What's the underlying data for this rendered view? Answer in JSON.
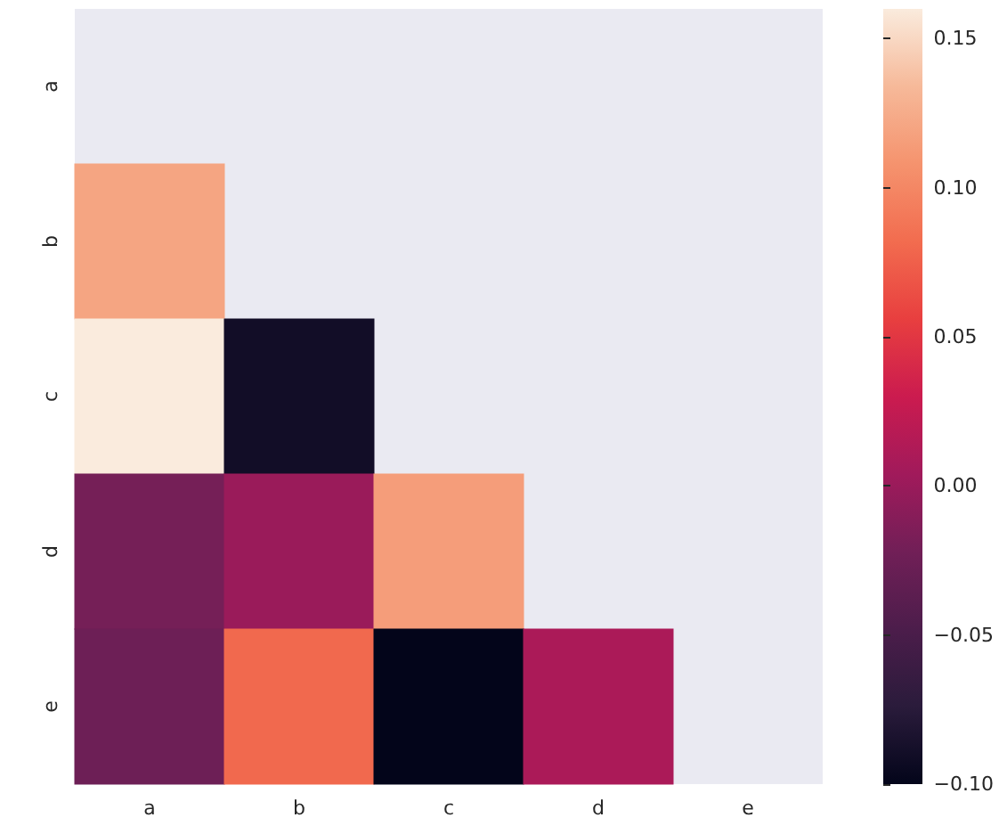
{
  "chart_data": {
    "type": "heatmap",
    "categories": [
      "a",
      "b",
      "c",
      "d",
      "e"
    ],
    "y_categories": [
      "a",
      "b",
      "c",
      "d",
      "e"
    ],
    "cells": [
      [
        null,
        null,
        null,
        null,
        null
      ],
      [
        0.12,
        null,
        null,
        null,
        null
      ],
      [
        0.16,
        -0.09,
        null,
        null,
        null
      ],
      [
        -0.02,
        0.0,
        0.115,
        null,
        null
      ],
      [
        -0.025,
        0.08,
        -0.1,
        0.01,
        null
      ]
    ],
    "clim": [
      -0.1,
      0.16
    ],
    "cticks": [
      {
        "value": -0.1,
        "label": "−0.10"
      },
      {
        "value": -0.05,
        "label": "−0.05"
      },
      {
        "value": 0.0,
        "label": "0.00"
      },
      {
        "value": 0.05,
        "label": "0.05"
      },
      {
        "value": 0.1,
        "label": "0.10"
      },
      {
        "value": 0.15,
        "label": "0.15"
      }
    ]
  }
}
